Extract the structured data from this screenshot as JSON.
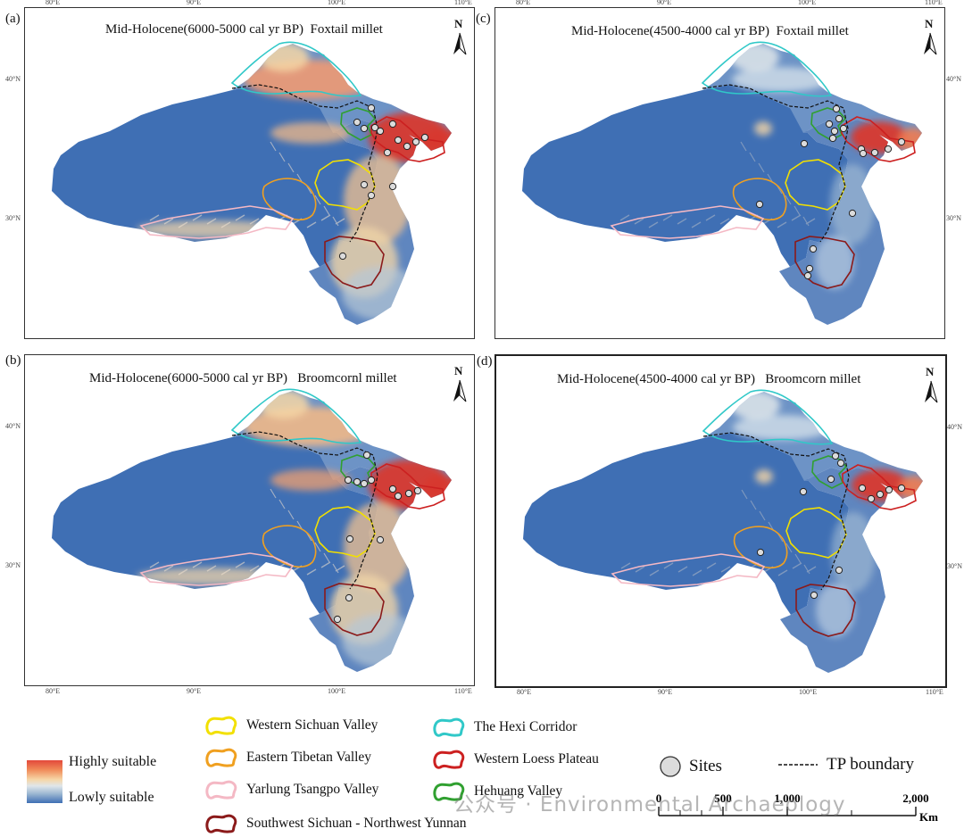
{
  "panels": [
    {
      "label": "(a)",
      "title": "Mid-Holocene(6000-5000 cal yr BP)",
      "crop": "Foxtail millet",
      "period": "mid",
      "crop_type": "foxtail"
    },
    {
      "label": "(b)",
      "title": "Mid-Holocene(6000-5000 cal yr BP)",
      "crop": "Broomcornl millet",
      "period": "mid",
      "crop_type": "broomcorn"
    },
    {
      "label": "(c)",
      "title": "Mid-Holocene(4500-4000 cal yr BP)",
      "crop": "Foxtail millet",
      "period": "late",
      "crop_type": "foxtail"
    },
    {
      "label": "(d)",
      "title": "Mid-Holocene(4500-4000 cal yr BP)",
      "crop": "Broomcorn millet",
      "period": "late",
      "crop_type": "broomcorn"
    }
  ],
  "axes": {
    "lon_ticks": [
      "80°E",
      "90°E",
      "100°E",
      "110°E"
    ],
    "lat_ticks": [
      "40°N",
      "30°N"
    ],
    "north_label": "N"
  },
  "legend": {
    "high_label": "Highly suitable",
    "low_label": "Lowly suitable",
    "regions": [
      {
        "name": "Western Sichuan Valley",
        "color": "#f2e000"
      },
      {
        "name": "Eastern Tibetan Valley",
        "color": "#f0a020"
      },
      {
        "name": "Yarlung Tsangpo Valley",
        "color": "#f4b8c4"
      },
      {
        "name": "Southwest Sichuan - Northwest Yunnan",
        "color": "#8b1a1a"
      },
      {
        "name": "The Hexi Corridor",
        "color": "#30c8c8"
      },
      {
        "name": "Western Loess Plateau",
        "color": "#cc2020"
      },
      {
        "name": "Hehuang Valley",
        "color": "#30a030"
      }
    ],
    "sites_label": "Sites",
    "boundary_label": "TP boundary"
  },
  "scale": {
    "ticks": [
      "0",
      "500",
      "1,000",
      "2,000"
    ],
    "unit": "Km"
  },
  "watermark": "公众号 · Environmental Archaeology",
  "colors": {
    "low": "#3f6fb4",
    "mid": "#f6d6a6",
    "high": "#d83a2e",
    "site": "#dcdcdc"
  }
}
